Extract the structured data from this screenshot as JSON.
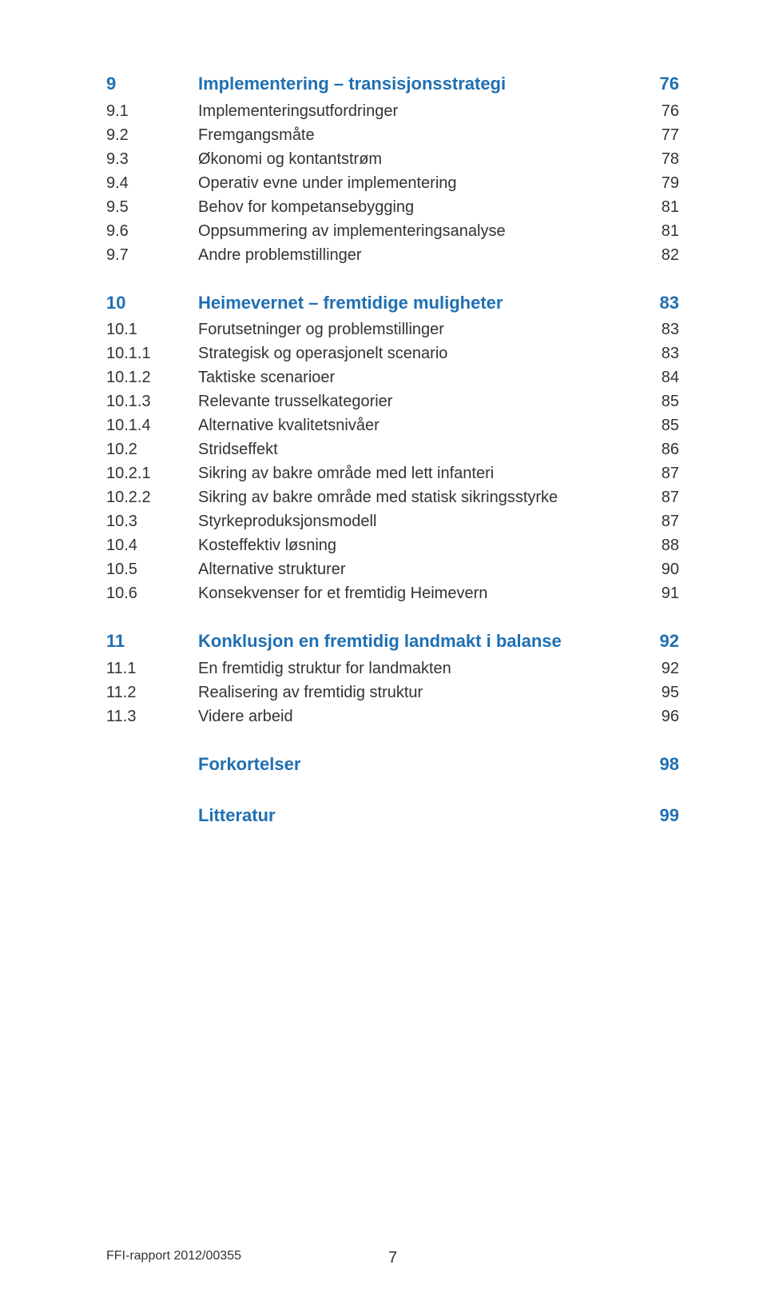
{
  "colors": {
    "heading": "#1f6fb2",
    "body": "#333333",
    "background": "#ffffff"
  },
  "typography": {
    "heading_fontsize": 22,
    "body_fontsize": 20,
    "footer_fontsize": 16,
    "font_family": "Arial"
  },
  "toc": {
    "s9": {
      "num": "9",
      "title": "Implementering – transisjonsstrategi",
      "page": "76"
    },
    "s9_1": {
      "num": "9.1",
      "title": "Implementeringsutfordringer",
      "page": "76"
    },
    "s9_2": {
      "num": "9.2",
      "title": "Fremgangsmåte",
      "page": "77"
    },
    "s9_3": {
      "num": "9.3",
      "title": "Økonomi og kontantstrøm",
      "page": "78"
    },
    "s9_4": {
      "num": "9.4",
      "title": "Operativ evne under implementering",
      "page": "79"
    },
    "s9_5": {
      "num": "9.5",
      "title": "Behov for kompetansebygging",
      "page": "81"
    },
    "s9_6": {
      "num": "9.6",
      "title": "Oppsummering av implementeringsanalyse",
      "page": "81"
    },
    "s9_7": {
      "num": "9.7",
      "title": "Andre problemstillinger",
      "page": "82"
    },
    "s10": {
      "num": "10",
      "title": "Heimevernet – fremtidige muligheter",
      "page": "83"
    },
    "s10_1": {
      "num": "10.1",
      "title": "Forutsetninger og problemstillinger",
      "page": "83"
    },
    "s10_1_1": {
      "num": "10.1.1",
      "title": "Strategisk og operasjonelt scenario",
      "page": "83"
    },
    "s10_1_2": {
      "num": "10.1.2",
      "title": "Taktiske scenarioer",
      "page": "84"
    },
    "s10_1_3": {
      "num": "10.1.3",
      "title": "Relevante trusselkategorier",
      "page": "85"
    },
    "s10_1_4": {
      "num": "10.1.4",
      "title": "Alternative kvalitetsnivåer",
      "page": "85"
    },
    "s10_2": {
      "num": "10.2",
      "title": "Stridseffekt",
      "page": "86"
    },
    "s10_2_1": {
      "num": "10.2.1",
      "title": "Sikring av bakre område med lett infanteri",
      "page": "87"
    },
    "s10_2_2": {
      "num": "10.2.2",
      "title": "Sikring av bakre område med statisk sikringsstyrke",
      "page": "87"
    },
    "s10_3": {
      "num": "10.3",
      "title": "Styrkeproduksjonsmodell",
      "page": "87"
    },
    "s10_4": {
      "num": "10.4",
      "title": "Kosteffektiv løsning",
      "page": "88"
    },
    "s10_5": {
      "num": "10.5",
      "title": "Alternative strukturer",
      "page": "90"
    },
    "s10_6": {
      "num": "10.6",
      "title": "Konsekvenser for et fremtidig Heimevern",
      "page": "91"
    },
    "s11": {
      "num": "11",
      "title": "Konklusjon en fremtidig landmakt i balanse",
      "page": "92"
    },
    "s11_1": {
      "num": "11.1",
      "title": "En fremtidig struktur for landmakten",
      "page": "92"
    },
    "s11_2": {
      "num": "11.2",
      "title": "Realisering av fremtidig struktur",
      "page": "95"
    },
    "s11_3": {
      "num": "11.3",
      "title": "Videre arbeid",
      "page": "96"
    },
    "forkortelser": {
      "num": "",
      "title": "Forkortelser",
      "page": "98"
    },
    "litteratur": {
      "num": "",
      "title": "Litteratur",
      "page": "99"
    }
  },
  "footer": {
    "report_id": "FFI-rapport 2012/00355",
    "page_number": "7"
  }
}
